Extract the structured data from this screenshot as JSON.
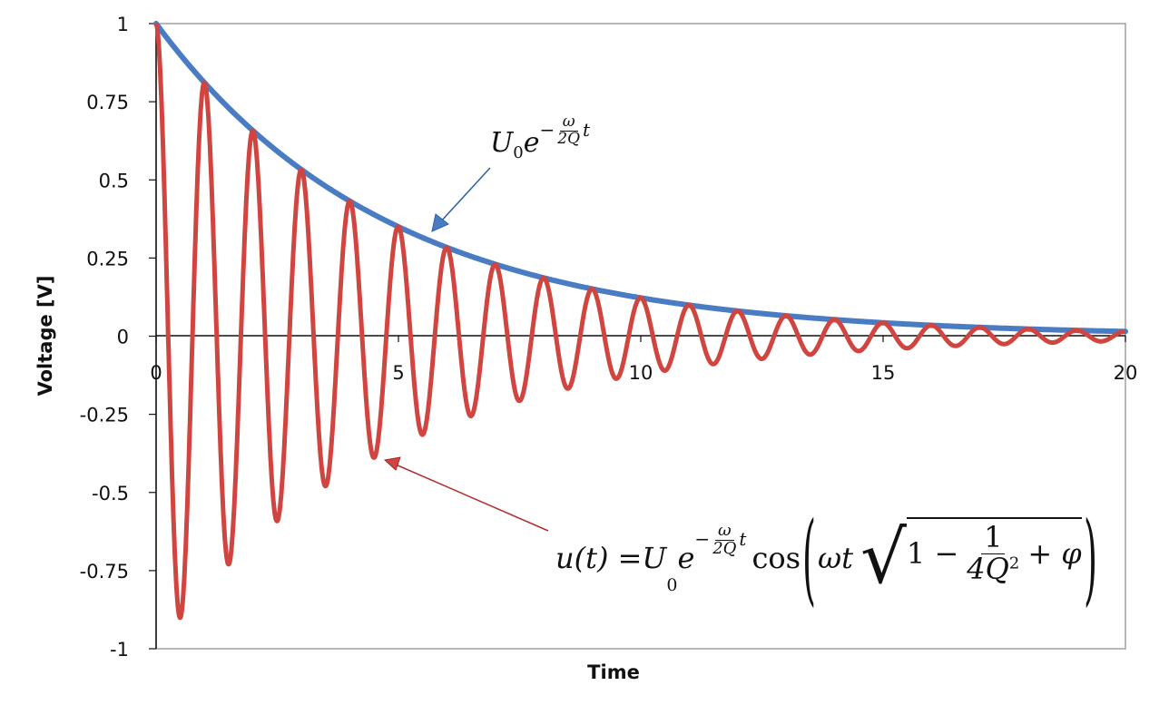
{
  "chart_data": {
    "type": "line",
    "title": "",
    "xlabel": "Time",
    "ylabel": "Voltage [V]",
    "xlim": [
      0,
      20
    ],
    "ylim": [
      -1,
      1
    ],
    "x_ticks": [
      "0",
      "5",
      "10",
      "15",
      "20"
    ],
    "y_ticks": [
      "1",
      "0.75",
      "0.5",
      "0.25",
      "0",
      "-0.25",
      "-0.5",
      "-0.75",
      "-1"
    ],
    "grid": false,
    "legend": "none",
    "model": {
      "U0": 1,
      "decay_rate": 0.21,
      "frequency": 1,
      "phase": 0
    },
    "series": [
      {
        "label_equation": "U0 e^(-ω/(2Q) t)",
        "color": "#4a7cc4",
        "points_t": [
          0,
          1,
          2,
          3,
          4,
          5,
          6,
          7,
          8,
          9,
          10,
          11,
          12,
          13,
          14,
          15,
          16,
          17,
          18,
          19,
          20
        ],
        "points_v": [
          1,
          0.81,
          0.66,
          0.53,
          0.43,
          0.35,
          0.28,
          0.23,
          0.19,
          0.15,
          0.12,
          0.1,
          0.08,
          0.065,
          0.05,
          0.04,
          0.035,
          0.03,
          0.02,
          0.02,
          0.015
        ]
      },
      {
        "label_equation": "u(t) = U0 e^(-ω/(2Q) t) cos(ωt √(1 − 1/(4Q²)) + φ)",
        "color": "#d0453f",
        "peaks_t": [
          0,
          1,
          2,
          3,
          4,
          5,
          6,
          7,
          8,
          9,
          10,
          11,
          12,
          13,
          14,
          15,
          16,
          17,
          18,
          19
        ],
        "peaks_v": [
          1,
          0.81,
          0.66,
          0.53,
          0.43,
          0.35,
          0.28,
          0.23,
          0.19,
          0.15,
          0.12,
          0.1,
          0.08,
          0.065,
          0.05,
          0.04,
          0.035,
          0.03,
          0.02,
          0.02
        ],
        "troughs_t": [
          0.5,
          1.5,
          2.5,
          3.5,
          4.5,
          5.5,
          6.5,
          7.5,
          8.5,
          9.5,
          10.5,
          11.5,
          12.5,
          13.5,
          14.5,
          15.5,
          16.5,
          17.5,
          18.5,
          19.5
        ],
        "troughs_v": [
          -0.9,
          -0.73,
          -0.59,
          -0.48,
          -0.39,
          -0.32,
          -0.26,
          -0.21,
          -0.17,
          -0.13,
          -0.11,
          -0.09,
          -0.07,
          -0.06,
          -0.05,
          -0.04,
          -0.03,
          -0.025,
          -0.02,
          -0.015
        ]
      }
    ]
  },
  "annotations": {
    "envelope": {
      "base": "U",
      "sub": "0",
      "e": "e",
      "minus": "−",
      "num": "ω",
      "den": "2Q",
      "t": "t"
    },
    "full": {
      "lhs": "u(t) = ",
      "base": "U",
      "sub": "0",
      "e": "e",
      "minus": "−",
      "num": "ω",
      "den": "2Q",
      "t": "t",
      "cos": "cos",
      "wt": "ωt",
      "one_minus": "1 −",
      "fnum": "1",
      "fden": "4Q",
      "fden_sup": "2",
      "plus_phi": "+ φ"
    }
  }
}
